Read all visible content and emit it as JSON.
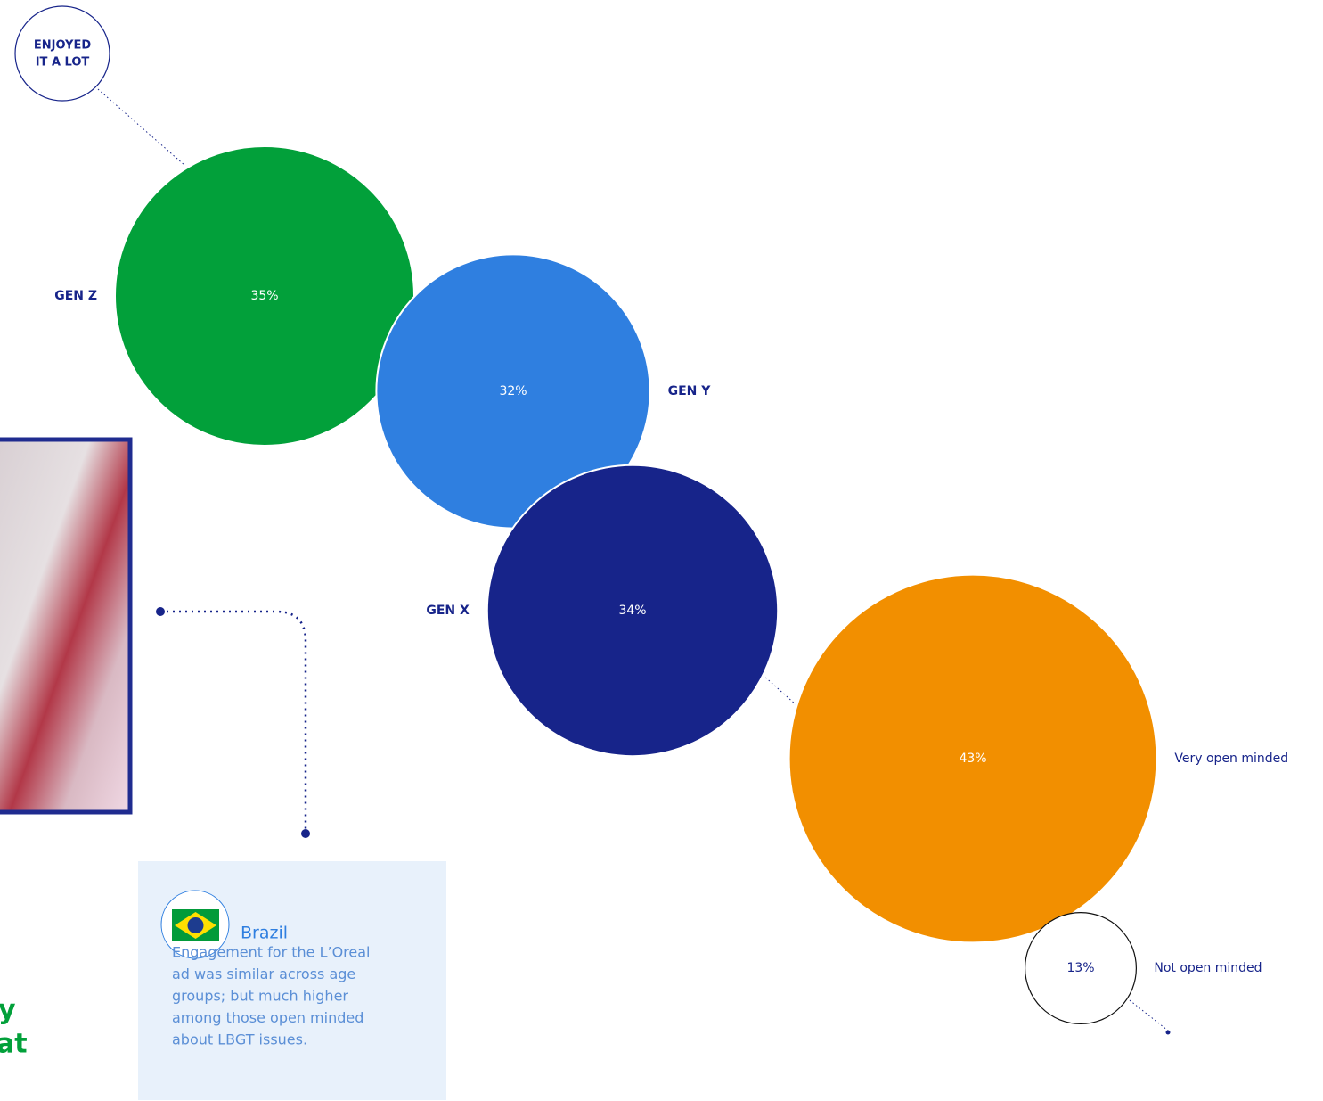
{
  "chart_data": {
    "type": "bubble",
    "title_lines": [
      "ENJOYED",
      "IT A LOT"
    ],
    "categories": [
      "GEN Z",
      "GEN Y",
      "GEN X",
      "Very open minded",
      "Not open minded"
    ],
    "values": [
      35,
      32,
      34,
      43,
      13
    ],
    "value_labels": [
      "35%",
      "32%",
      "34%",
      "43%",
      "13%"
    ],
    "colors": [
      "#02a03a",
      "#2f7fe0",
      "#17248a",
      "#f28f00",
      "#ffffff"
    ]
  },
  "note": {
    "country": "Brazil",
    "body_lines": [
      "Engagement for the L’Oreal",
      "ad was similar across age",
      "groups; but much higher",
      "among those open minded",
      "about LBGT issues."
    ]
  },
  "fragments": [
    "y",
    "at"
  ]
}
